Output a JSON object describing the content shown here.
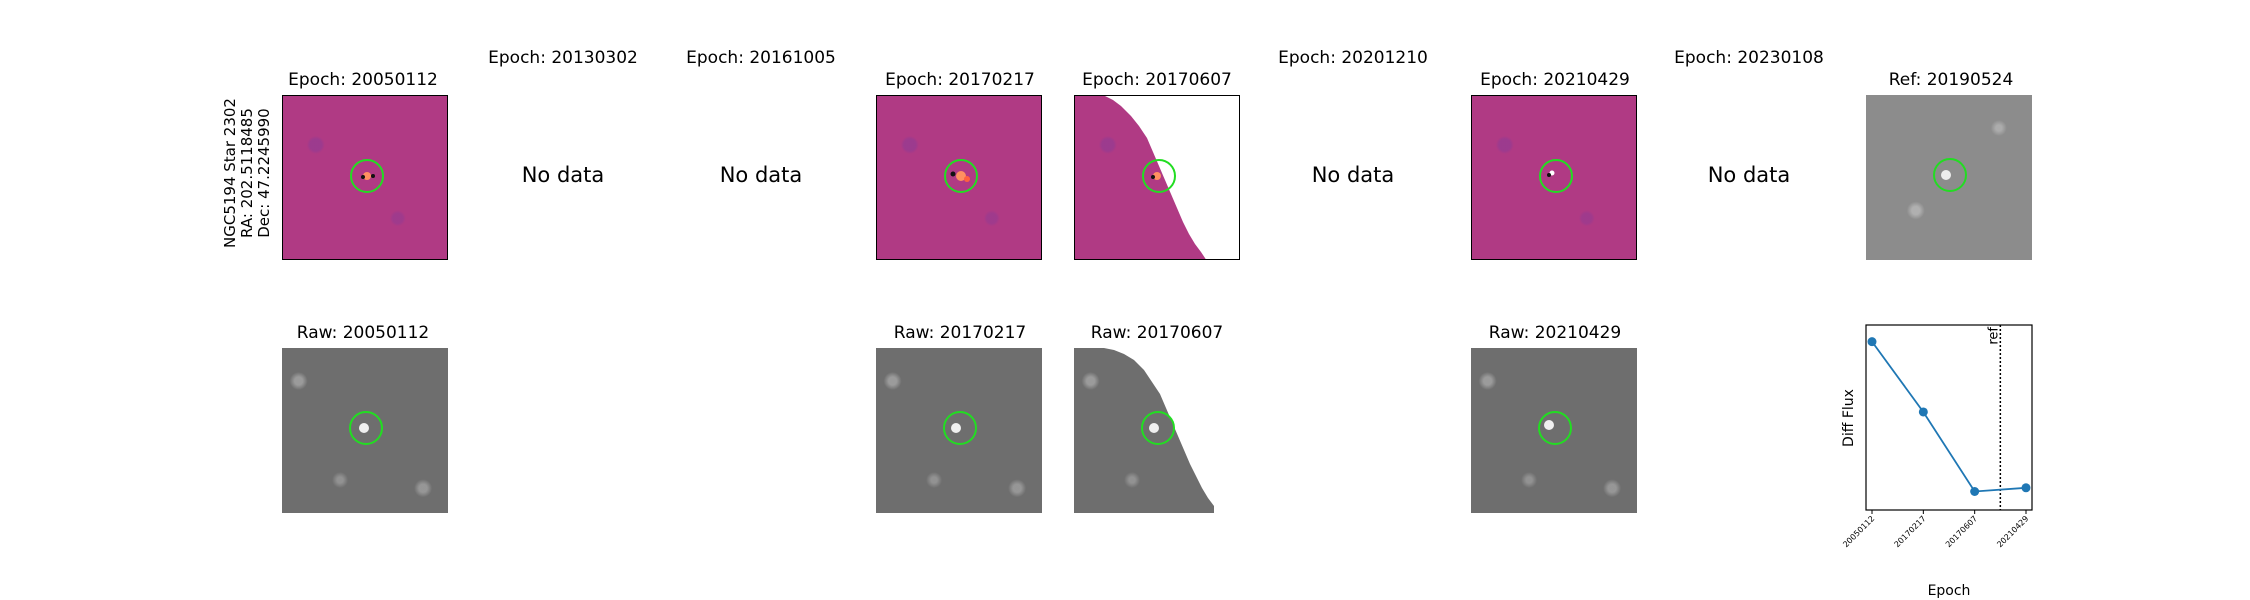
{
  "target": {
    "name": "NGC5194 Star 2302",
    "ra": "RA: 202.5118485",
    "dec": "Dec: 47.2245990"
  },
  "top_row": [
    {
      "title": "Epoch: 20050112",
      "kind": "diff"
    },
    {
      "title": "Epoch: 20130302",
      "kind": "nodata",
      "message": "No data"
    },
    {
      "title": "Epoch: 20161005",
      "kind": "nodata",
      "message": "No data"
    },
    {
      "title": "Epoch: 20170217",
      "kind": "diff"
    },
    {
      "title": "Epoch: 20170607",
      "kind": "diff-partial"
    },
    {
      "title": "Epoch: 20201210",
      "kind": "nodata",
      "message": "No data"
    },
    {
      "title": "Epoch: 20210429",
      "kind": "diff"
    },
    {
      "title": "Epoch: 20230108",
      "kind": "nodata",
      "message": "No data"
    },
    {
      "title": "Ref: 20190524",
      "kind": "ref"
    }
  ],
  "bottom_row": [
    {
      "title": "Raw: 20050112",
      "kind": "raw"
    },
    {
      "title": "Raw: 20170217",
      "kind": "raw"
    },
    {
      "title": "Raw: 20170607",
      "kind": "raw-partial"
    },
    {
      "title": "Raw: 20210429",
      "kind": "raw"
    }
  ],
  "colors": {
    "circle": "#22dd22",
    "diff_bg": "#b03a84",
    "line": "#1f77b4"
  },
  "chart_data": {
    "type": "line",
    "x": [
      "20050112",
      "20170217",
      "20170607",
      "20210429"
    ],
    "y": [
      0.91,
      0.53,
      0.1,
      0.12
    ],
    "ylim": [
      0,
      1
    ],
    "xlabel": "Epoch",
    "ylabel": "Diff Flux",
    "reference_line": {
      "position_between": [
        "20170607",
        "20210429"
      ],
      "fraction": 0.5,
      "label": "ref"
    },
    "y_ticks_shown": false
  }
}
